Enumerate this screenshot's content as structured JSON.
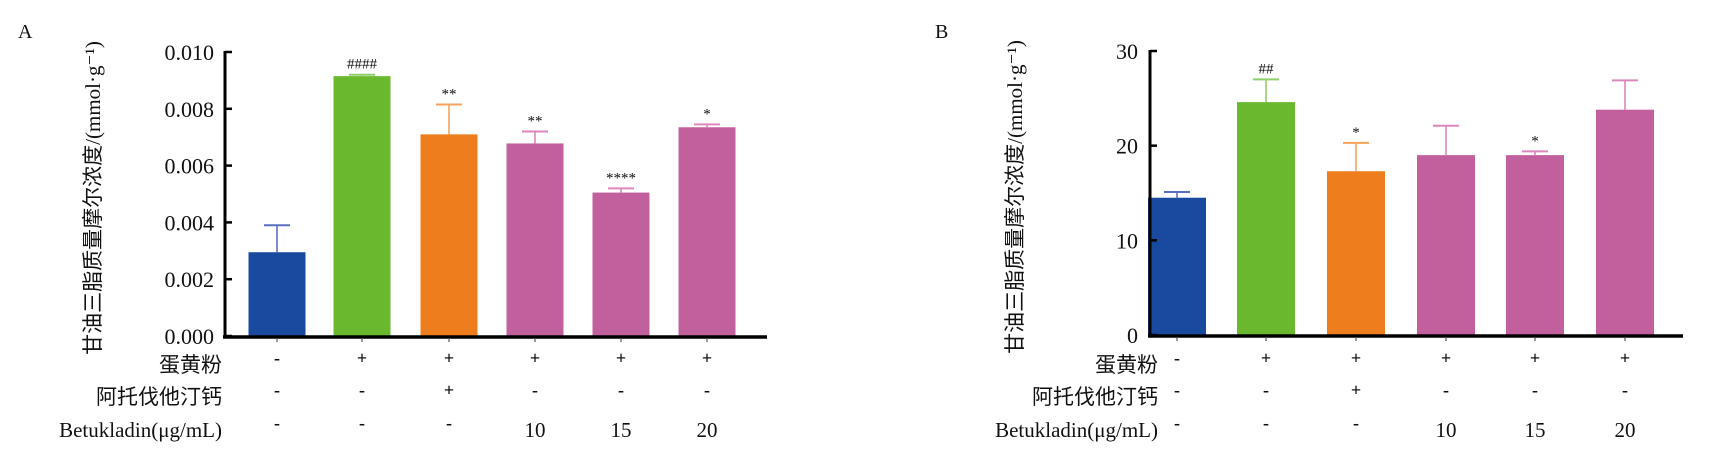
{
  "chart_data": [
    {
      "type": "bar",
      "panel_label": "A",
      "ylabel": "甘油三脂质量摩尔浓度/(mmol·g⁻¹)",
      "ylim": [
        0,
        0.01
      ],
      "yticks": [
        "0.000",
        "0.002",
        "0.004",
        "0.006",
        "0.008",
        "0.010"
      ],
      "ytick_values": [
        0,
        0.002,
        0.004,
        0.006,
        0.008,
        0.01
      ],
      "values": [
        0.00295,
        0.00915,
        0.0071,
        0.00678,
        0.00505,
        0.00735
      ],
      "error_upper": [
        0.0039,
        0.0092,
        0.00815,
        0.0072,
        0.0052,
        0.00745
      ],
      "colors": [
        "#1a4aa0",
        "#6ab82e",
        "#ee7d1e",
        "#c2609e",
        "#c2609e",
        "#c2609e"
      ],
      "error_colors": [
        "#5b6fc0",
        "#8fcf6a",
        "#f5a35c",
        "#dc86bd",
        "#dc86bd",
        "#dc86bd"
      ],
      "annotations": [
        "",
        "####",
        "**",
        "**",
        "****",
        "*"
      ],
      "rows": [
        {
          "label": "蛋黄粉",
          "values": [
            "-",
            "+",
            "+",
            "+",
            "+",
            "+"
          ]
        },
        {
          "label": "阿托伐他汀钙",
          "values": [
            "-",
            "-",
            "+",
            "-",
            "-",
            "-"
          ]
        },
        {
          "label": "Betukladin(μg/mL)",
          "values": [
            "-",
            "-",
            "-",
            "10",
            "15",
            "20"
          ]
        }
      ]
    },
    {
      "type": "bar",
      "panel_label": "B",
      "ylabel": "甘油三脂质量摩尔浓度/(mmol·g⁻¹)",
      "ylim": [
        0,
        30
      ],
      "yticks": [
        "0",
        "10",
        "20",
        "30"
      ],
      "ytick_values": [
        0,
        10,
        20,
        30
      ],
      "values": [
        14.5,
        24.6,
        17.3,
        19.0,
        19.0,
        23.8
      ],
      "error_upper": [
        15.1,
        27.0,
        20.3,
        22.1,
        19.4,
        26.9
      ],
      "colors": [
        "#1a4aa0",
        "#6ab82e",
        "#ee7d1e",
        "#c2609e",
        "#c2609e",
        "#c2609e"
      ],
      "error_colors": [
        "#5b6fc0",
        "#8fcf6a",
        "#f5a35c",
        "#dc86bd",
        "#dc86bd",
        "#dc86bd"
      ],
      "annotations": [
        "",
        "##",
        "*",
        "",
        "*",
        ""
      ],
      "rows": [
        {
          "label": "蛋黄粉",
          "values": [
            "-",
            "+",
            "+",
            "+",
            "+",
            "+"
          ]
        },
        {
          "label": "阿托伐他汀钙",
          "values": [
            "-",
            "-",
            "+",
            "-",
            "-",
            "-"
          ]
        },
        {
          "label": "Betukladin(μg/mL)",
          "values": [
            "-",
            "-",
            "-",
            "10",
            "15",
            "20"
          ]
        }
      ]
    }
  ]
}
